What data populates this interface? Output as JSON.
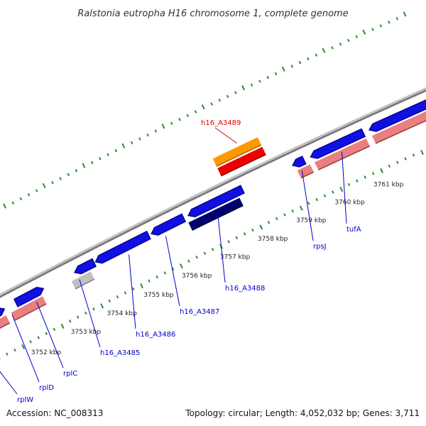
{
  "title": "Ralstonia eutropha H16 chromosome 1, complete genome",
  "footer": {
    "accession": "Accession: NC_008313",
    "summary": "Topology: circular; Length: 4,052,032 bp; Genes: 3,711"
  },
  "colors": {
    "backbone": "#7a7a7a",
    "tick": "#2e8b2e",
    "cds_blue": "#1010e0",
    "cds_pink": "#e88080",
    "highlight_orange": "#ff9900",
    "highlight_red": "#ee0000",
    "gray_gene": "#c0c0c0",
    "dark_navy": "#000070",
    "label_blue": "#0000cc",
    "label_red": "#dd0000"
  },
  "kbp_labels": [
    "3752 kbp",
    "3753 kbp",
    "3754 kbp",
    "3755 kbp",
    "3756 kbp",
    "3757 kbp",
    "3758 kbp",
    "3759 kbp",
    "3760 kbp",
    "3761 kbp"
  ],
  "gene_labels": [
    {
      "text": "rplW",
      "color": "blue"
    },
    {
      "text": "rplD",
      "color": "blue"
    },
    {
      "text": "rplC",
      "color": "blue"
    },
    {
      "text": "h16_A3485",
      "color": "blue"
    },
    {
      "text": "h16_A3486",
      "color": "blue"
    },
    {
      "text": "h16_A3487",
      "color": "blue"
    },
    {
      "text": "h16_A3488",
      "color": "blue"
    },
    {
      "text": "rpsJ",
      "color": "blue"
    },
    {
      "text": "tufA",
      "color": "blue"
    },
    {
      "text": "h16_A3489",
      "color": "red"
    }
  ]
}
